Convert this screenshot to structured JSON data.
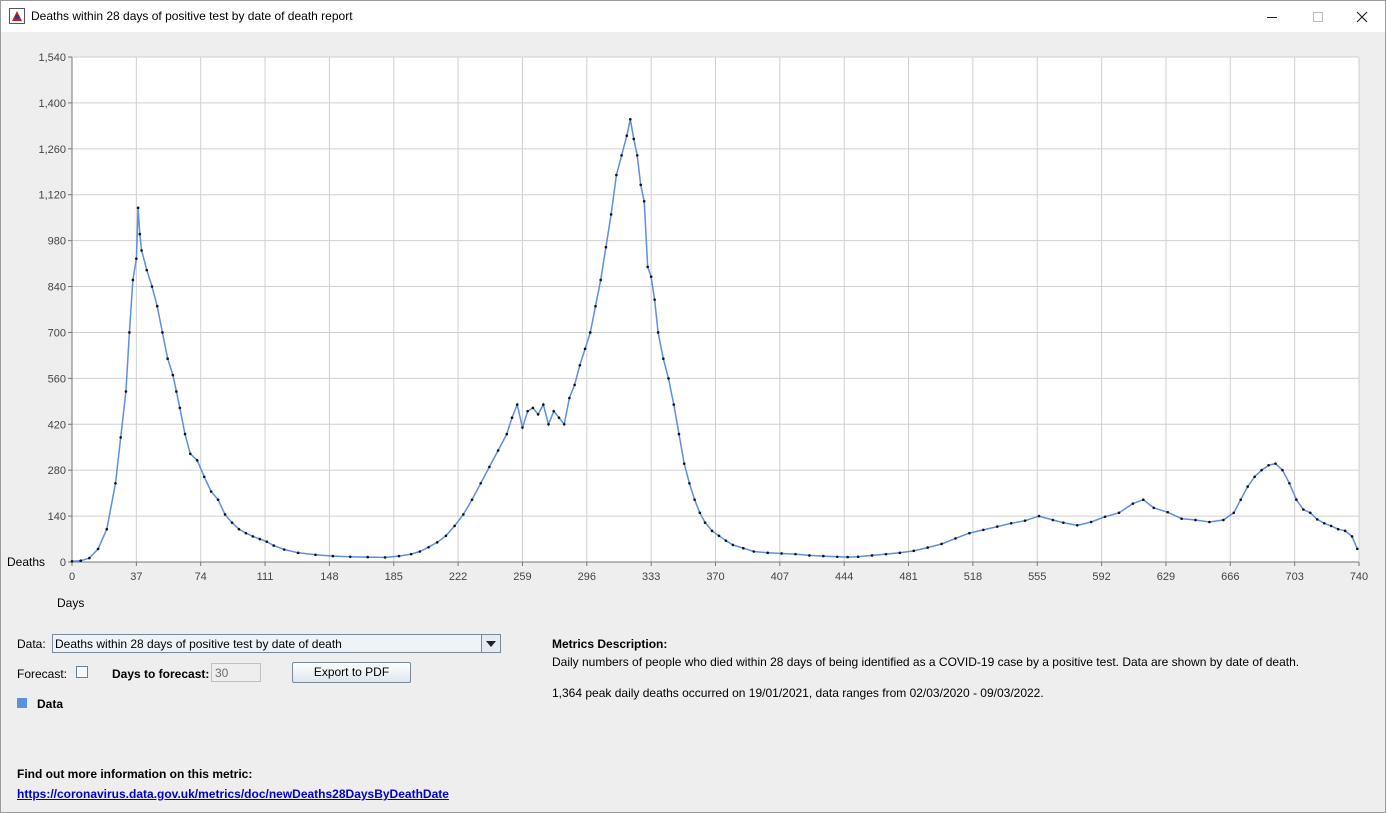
{
  "window": {
    "title": "Deaths within 28 days of positive test by date of death report",
    "minimize_icon": "minimize-icon",
    "maximize_icon": "maximize-icon",
    "close_icon": "close-icon"
  },
  "chart_data": {
    "type": "line",
    "xlabel": "Days",
    "ylabel": "Deaths",
    "xlim": [
      0,
      740
    ],
    "ylim": [
      0,
      1540
    ],
    "x_ticks": [
      0,
      37,
      74,
      111,
      148,
      185,
      222,
      259,
      296,
      333,
      370,
      407,
      444,
      481,
      518,
      555,
      592,
      629,
      666,
      703,
      740
    ],
    "y_ticks": [
      0,
      140,
      280,
      420,
      560,
      700,
      840,
      980,
      1120,
      1260,
      1400,
      1540
    ],
    "x_tick_labels": [
      "0",
      "37",
      "74",
      "111",
      "148",
      "185",
      "222",
      "259",
      "296",
      "333",
      "370",
      "407",
      "444",
      "481",
      "518",
      "555",
      "592",
      "629",
      "666",
      "703",
      "740"
    ],
    "y_tick_labels": [
      "0",
      "140",
      "280",
      "420",
      "560",
      "700",
      "840",
      "980",
      "1,120",
      "1,260",
      "1,400",
      "1,540"
    ],
    "grid": true,
    "series": [
      {
        "name": "Data",
        "color": "#5b8fe0",
        "points": [
          [
            0,
            2
          ],
          [
            5,
            4
          ],
          [
            10,
            12
          ],
          [
            15,
            40
          ],
          [
            20,
            100
          ],
          [
            25,
            240
          ],
          [
            28,
            380
          ],
          [
            31,
            520
          ],
          [
            33,
            700
          ],
          [
            35,
            860
          ],
          [
            37,
            925
          ],
          [
            38,
            1080
          ],
          [
            39,
            1000
          ],
          [
            40,
            950
          ],
          [
            43,
            890
          ],
          [
            46,
            840
          ],
          [
            49,
            780
          ],
          [
            52,
            700
          ],
          [
            55,
            620
          ],
          [
            58,
            570
          ],
          [
            60,
            520
          ],
          [
            62,
            470
          ],
          [
            65,
            390
          ],
          [
            68,
            330
          ],
          [
            72,
            310
          ],
          [
            76,
            260
          ],
          [
            80,
            215
          ],
          [
            84,
            190
          ],
          [
            88,
            145
          ],
          [
            92,
            120
          ],
          [
            96,
            100
          ],
          [
            100,
            88
          ],
          [
            104,
            78
          ],
          [
            108,
            70
          ],
          [
            112,
            62
          ],
          [
            116,
            50
          ],
          [
            122,
            38
          ],
          [
            130,
            28
          ],
          [
            140,
            22
          ],
          [
            150,
            18
          ],
          [
            160,
            16
          ],
          [
            170,
            15
          ],
          [
            180,
            14
          ],
          [
            188,
            18
          ],
          [
            195,
            24
          ],
          [
            200,
            32
          ],
          [
            205,
            45
          ],
          [
            210,
            60
          ],
          [
            215,
            80
          ],
          [
            220,
            110
          ],
          [
            225,
            145
          ],
          [
            230,
            190
          ],
          [
            235,
            240
          ],
          [
            240,
            290
          ],
          [
            245,
            340
          ],
          [
            250,
            390
          ],
          [
            253,
            440
          ],
          [
            256,
            480
          ],
          [
            259,
            410
          ],
          [
            262,
            460
          ],
          [
            265,
            470
          ],
          [
            268,
            450
          ],
          [
            271,
            480
          ],
          [
            274,
            420
          ],
          [
            277,
            460
          ],
          [
            280,
            440
          ],
          [
            283,
            420
          ],
          [
            286,
            500
          ],
          [
            289,
            540
          ],
          [
            292,
            600
          ],
          [
            295,
            650
          ],
          [
            298,
            700
          ],
          [
            301,
            780
          ],
          [
            304,
            860
          ],
          [
            307,
            960
          ],
          [
            310,
            1060
          ],
          [
            313,
            1180
          ],
          [
            316,
            1240
          ],
          [
            319,
            1300
          ],
          [
            321,
            1350
          ],
          [
            323,
            1290
          ],
          [
            325,
            1240
          ],
          [
            327,
            1150
          ],
          [
            329,
            1100
          ],
          [
            331,
            900
          ],
          [
            333,
            870
          ],
          [
            335,
            800
          ],
          [
            337,
            700
          ],
          [
            340,
            620
          ],
          [
            343,
            560
          ],
          [
            346,
            480
          ],
          [
            349,
            390
          ],
          [
            352,
            300
          ],
          [
            355,
            240
          ],
          [
            358,
            190
          ],
          [
            361,
            150
          ],
          [
            364,
            120
          ],
          [
            368,
            95
          ],
          [
            372,
            80
          ],
          [
            376,
            65
          ],
          [
            380,
            52
          ],
          [
            386,
            42
          ],
          [
            392,
            32
          ],
          [
            400,
            28
          ],
          [
            408,
            26
          ],
          [
            416,
            24
          ],
          [
            424,
            20
          ],
          [
            432,
            18
          ],
          [
            440,
            16
          ],
          [
            446,
            15
          ],
          [
            452,
            16
          ],
          [
            460,
            20
          ],
          [
            468,
            24
          ],
          [
            476,
            28
          ],
          [
            484,
            34
          ],
          [
            492,
            44
          ],
          [
            500,
            55
          ],
          [
            508,
            72
          ],
          [
            516,
            88
          ],
          [
            524,
            98
          ],
          [
            532,
            108
          ],
          [
            540,
            118
          ],
          [
            548,
            126
          ],
          [
            556,
            140
          ],
          [
            564,
            128
          ],
          [
            570,
            120
          ],
          [
            578,
            112
          ],
          [
            586,
            122
          ],
          [
            594,
            138
          ],
          [
            602,
            150
          ],
          [
            610,
            178
          ],
          [
            616,
            190
          ],
          [
            622,
            165
          ],
          [
            630,
            152
          ],
          [
            638,
            132
          ],
          [
            646,
            128
          ],
          [
            654,
            122
          ],
          [
            662,
            128
          ],
          [
            668,
            150
          ],
          [
            672,
            190
          ],
          [
            676,
            230
          ],
          [
            680,
            260
          ],
          [
            684,
            280
          ],
          [
            688,
            295
          ],
          [
            692,
            300
          ],
          [
            696,
            280
          ],
          [
            700,
            240
          ],
          [
            704,
            190
          ],
          [
            708,
            160
          ],
          [
            712,
            150
          ],
          [
            716,
            130
          ],
          [
            720,
            118
          ],
          [
            724,
            110
          ],
          [
            728,
            100
          ],
          [
            732,
            95
          ],
          [
            736,
            78
          ],
          [
            739,
            40
          ]
        ]
      }
    ]
  },
  "controls": {
    "data_label": "Data:",
    "data_selected": "Deaths within 28 days of positive test by date of death",
    "forecast_label": "Forecast:",
    "forecast_checked": false,
    "days_label": "Days to forecast:",
    "days_value": "30",
    "export_label": "Export to PDF",
    "legend_label": "Data"
  },
  "description": {
    "title": "Metrics Description:",
    "text": "Daily numbers of people who died within 28 days of being identified as a COVID-19 case by a positive test. Data are shown by date of death.",
    "summary": "1,364 peak daily deaths occurred on 19/01/2021, data ranges from 02/03/2020 - 09/03/2022."
  },
  "more_info": {
    "title": "Find out more information on this metric:",
    "link": "https://coronavirus.data.gov.uk/metrics/doc/newDeaths28DaysByDeathDate"
  }
}
